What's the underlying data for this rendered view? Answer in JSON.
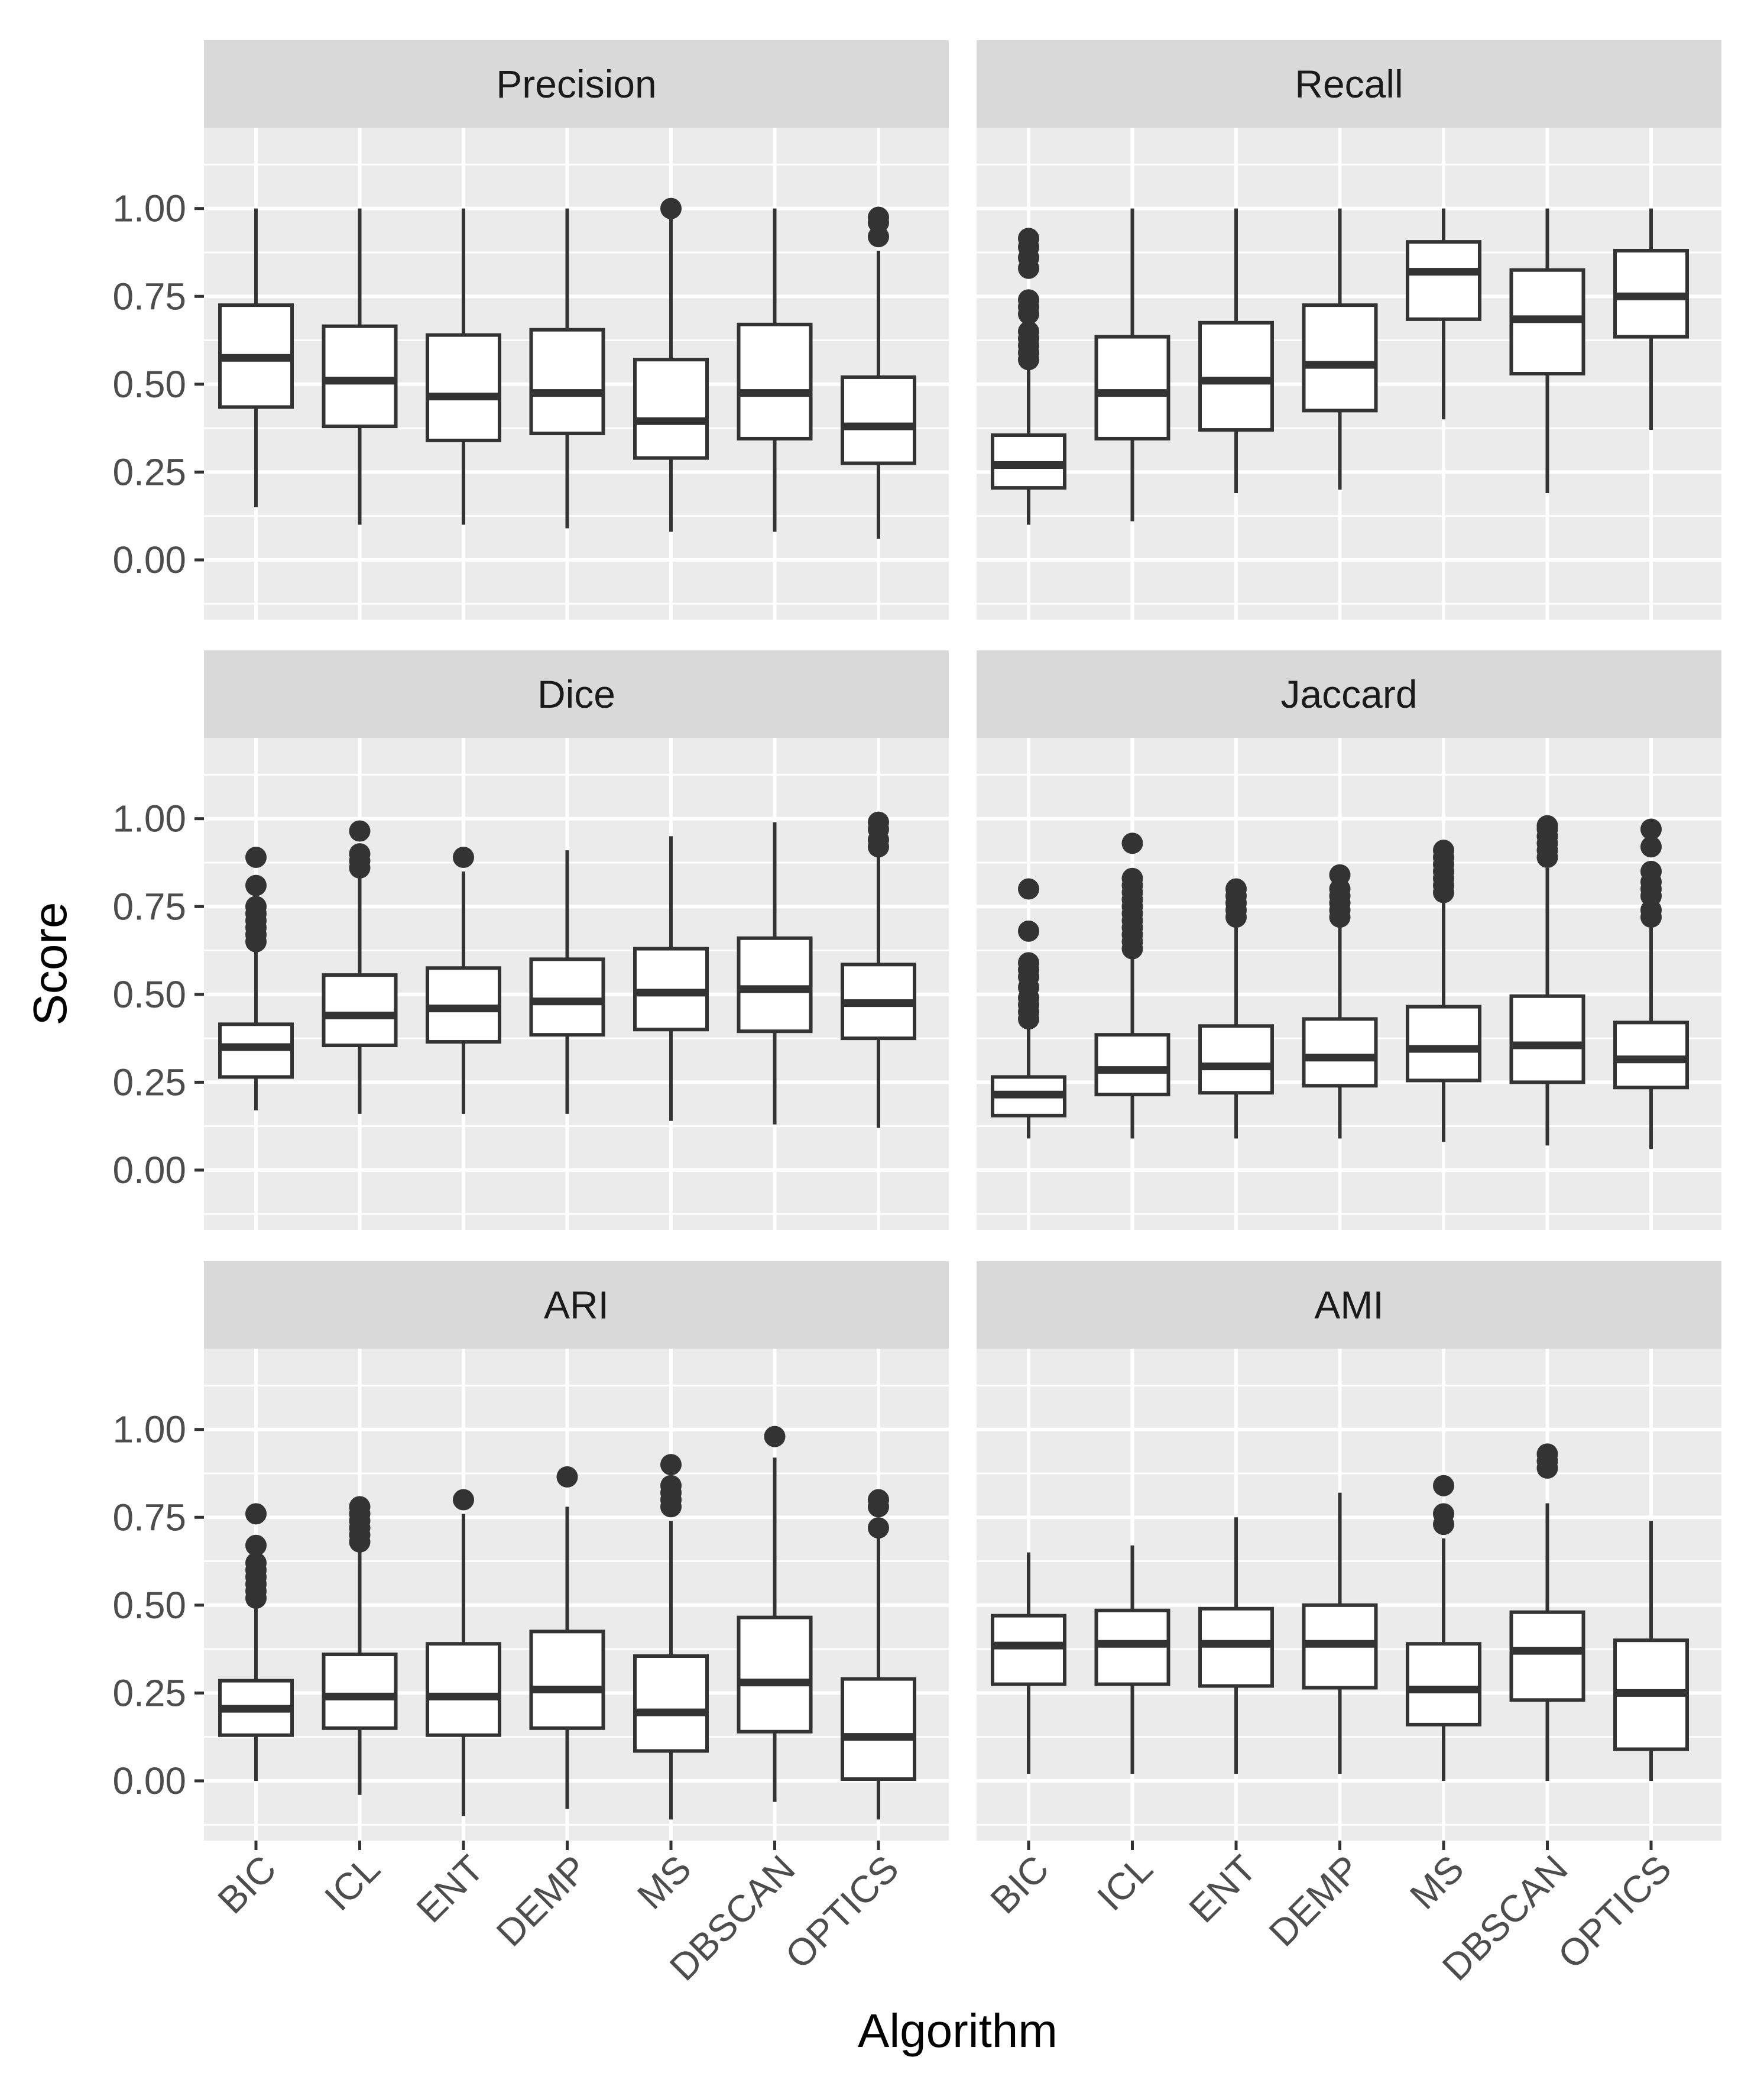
{
  "chart_data": {
    "type": "boxplot",
    "layout": "facet grid, 3 rows x 2 columns",
    "xlabel": "Algorithm",
    "ylabel": "Score",
    "categories": [
      "BIC",
      "ICL",
      "ENT",
      "DEMP",
      "MS",
      "DBSCAN",
      "OPTICS"
    ],
    "ylim": [
      -0.17,
      1.23
    ],
    "yticks": [
      0.0,
      0.25,
      0.5,
      0.75,
      1.0
    ],
    "ytick_labels": [
      "0.00",
      "0.25",
      "0.50",
      "0.75",
      "1.00"
    ],
    "colors": {
      "panel_bg": "#ebebeb",
      "strip_bg": "#d9d9d9",
      "grid": "#ffffff",
      "box_fill": "#ffffff",
      "box_line": "#333333"
    },
    "panels": [
      {
        "title": "Precision",
        "boxes": [
          {
            "category": "BIC",
            "low": 0.15,
            "q1": 0.435,
            "median": 0.575,
            "q3": 0.725,
            "high": 1.0,
            "outliers": []
          },
          {
            "category": "ICL",
            "low": 0.1,
            "q1": 0.38,
            "median": 0.51,
            "q3": 0.665,
            "high": 1.0,
            "outliers": []
          },
          {
            "category": "ENT",
            "low": 0.1,
            "q1": 0.34,
            "median": 0.465,
            "q3": 0.64,
            "high": 1.0,
            "outliers": []
          },
          {
            "category": "DEMP",
            "low": 0.09,
            "q1": 0.36,
            "median": 0.475,
            "q3": 0.655,
            "high": 1.0,
            "outliers": []
          },
          {
            "category": "MS",
            "low": 0.08,
            "q1": 0.29,
            "median": 0.395,
            "q3": 0.57,
            "high": 1.0,
            "outliers": [
              1.0
            ]
          },
          {
            "category": "DBSCAN",
            "low": 0.08,
            "q1": 0.345,
            "median": 0.475,
            "q3": 0.67,
            "high": 1.0,
            "outliers": []
          },
          {
            "category": "OPTICS",
            "low": 0.06,
            "q1": 0.275,
            "median": 0.38,
            "q3": 0.52,
            "high": 0.88,
            "outliers": [
              0.92,
              0.96,
              0.975
            ]
          }
        ]
      },
      {
        "title": "Recall",
        "boxes": [
          {
            "category": "BIC",
            "low": 0.1,
            "q1": 0.205,
            "median": 0.27,
            "q3": 0.355,
            "high": 0.55,
            "outliers": [
              0.57,
              0.59,
              0.61,
              0.63,
              0.65,
              0.7,
              0.72,
              0.74,
              0.83,
              0.86,
              0.89,
              0.915
            ]
          },
          {
            "category": "ICL",
            "low": 0.11,
            "q1": 0.345,
            "median": 0.475,
            "q3": 0.635,
            "high": 1.0,
            "outliers": []
          },
          {
            "category": "ENT",
            "low": 0.19,
            "q1": 0.37,
            "median": 0.51,
            "q3": 0.675,
            "high": 1.0,
            "outliers": []
          },
          {
            "category": "DEMP",
            "low": 0.2,
            "q1": 0.425,
            "median": 0.555,
            "q3": 0.725,
            "high": 1.0,
            "outliers": []
          },
          {
            "category": "MS",
            "low": 0.4,
            "q1": 0.685,
            "median": 0.82,
            "q3": 0.905,
            "high": 1.0,
            "outliers": []
          },
          {
            "category": "DBSCAN",
            "low": 0.19,
            "q1": 0.53,
            "median": 0.685,
            "q3": 0.825,
            "high": 1.0,
            "outliers": []
          },
          {
            "category": "OPTICS",
            "low": 0.37,
            "q1": 0.635,
            "median": 0.75,
            "q3": 0.88,
            "high": 1.0,
            "outliers": []
          }
        ]
      },
      {
        "title": "Dice",
        "boxes": [
          {
            "category": "BIC",
            "low": 0.17,
            "q1": 0.265,
            "median": 0.35,
            "q3": 0.415,
            "high": 0.62,
            "outliers": [
              0.65,
              0.67,
              0.69,
              0.71,
              0.73,
              0.75,
              0.81,
              0.89
            ]
          },
          {
            "category": "ICL",
            "low": 0.16,
            "q1": 0.355,
            "median": 0.44,
            "q3": 0.555,
            "high": 0.84,
            "outliers": [
              0.86,
              0.88,
              0.9,
              0.965
            ]
          },
          {
            "category": "ENT",
            "low": 0.16,
            "q1": 0.365,
            "median": 0.46,
            "q3": 0.575,
            "high": 0.85,
            "outliers": [
              0.89
            ]
          },
          {
            "category": "DEMP",
            "low": 0.16,
            "q1": 0.385,
            "median": 0.48,
            "q3": 0.6,
            "high": 0.91,
            "outliers": []
          },
          {
            "category": "MS",
            "low": 0.14,
            "q1": 0.4,
            "median": 0.505,
            "q3": 0.63,
            "high": 0.95,
            "outliers": []
          },
          {
            "category": "DBSCAN",
            "low": 0.13,
            "q1": 0.395,
            "median": 0.515,
            "q3": 0.66,
            "high": 0.99,
            "outliers": []
          },
          {
            "category": "OPTICS",
            "low": 0.12,
            "q1": 0.375,
            "median": 0.475,
            "q3": 0.585,
            "high": 0.89,
            "outliers": [
              0.92,
              0.94,
              0.97,
              0.99
            ]
          }
        ]
      },
      {
        "title": "Jaccard",
        "boxes": [
          {
            "category": "BIC",
            "low": 0.09,
            "q1": 0.155,
            "median": 0.215,
            "q3": 0.265,
            "high": 0.41,
            "outliers": [
              0.43,
              0.45,
              0.47,
              0.49,
              0.52,
              0.55,
              0.57,
              0.59,
              0.68,
              0.8
            ]
          },
          {
            "category": "ICL",
            "low": 0.09,
            "q1": 0.215,
            "median": 0.285,
            "q3": 0.385,
            "high": 0.61,
            "outliers": [
              0.63,
              0.65,
              0.67,
              0.69,
              0.71,
              0.73,
              0.75,
              0.77,
              0.79,
              0.81,
              0.83,
              0.93
            ]
          },
          {
            "category": "ENT",
            "low": 0.09,
            "q1": 0.22,
            "median": 0.295,
            "q3": 0.41,
            "high": 0.7,
            "outliers": [
              0.72,
              0.74,
              0.76,
              0.78,
              0.8
            ]
          },
          {
            "category": "DEMP",
            "low": 0.09,
            "q1": 0.24,
            "median": 0.32,
            "q3": 0.43,
            "high": 0.7,
            "outliers": [
              0.72,
              0.74,
              0.76,
              0.78,
              0.8,
              0.84
            ]
          },
          {
            "category": "MS",
            "low": 0.08,
            "q1": 0.255,
            "median": 0.345,
            "q3": 0.465,
            "high": 0.77,
            "outliers": [
              0.79,
              0.81,
              0.83,
              0.85,
              0.87,
              0.89,
              0.91
            ]
          },
          {
            "category": "DBSCAN",
            "low": 0.07,
            "q1": 0.25,
            "median": 0.355,
            "q3": 0.495,
            "high": 0.86,
            "outliers": [
              0.89,
              0.91,
              0.93,
              0.95,
              0.97,
              0.98
            ]
          },
          {
            "category": "OPTICS",
            "low": 0.06,
            "q1": 0.235,
            "median": 0.315,
            "q3": 0.42,
            "high": 0.7,
            "outliers": [
              0.72,
              0.74,
              0.78,
              0.8,
              0.82,
              0.85,
              0.92,
              0.97
            ]
          }
        ]
      },
      {
        "title": "ARI",
        "boxes": [
          {
            "category": "BIC",
            "low": 0.0,
            "q1": 0.13,
            "median": 0.205,
            "q3": 0.285,
            "high": 0.5,
            "outliers": [
              0.52,
              0.54,
              0.56,
              0.58,
              0.6,
              0.62,
              0.67,
              0.76
            ]
          },
          {
            "category": "ICL",
            "low": -0.04,
            "q1": 0.15,
            "median": 0.24,
            "q3": 0.36,
            "high": 0.66,
            "outliers": [
              0.68,
              0.7,
              0.72,
              0.74,
              0.76,
              0.78
            ]
          },
          {
            "category": "ENT",
            "low": -0.1,
            "q1": 0.13,
            "median": 0.24,
            "q3": 0.39,
            "high": 0.76,
            "outliers": [
              0.8
            ]
          },
          {
            "category": "DEMP",
            "low": -0.08,
            "q1": 0.15,
            "median": 0.26,
            "q3": 0.425,
            "high": 0.78,
            "outliers": [
              0.865
            ]
          },
          {
            "category": "MS",
            "low": -0.11,
            "q1": 0.085,
            "median": 0.195,
            "q3": 0.355,
            "high": 0.74,
            "outliers": [
              0.78,
              0.8,
              0.82,
              0.84,
              0.9
            ]
          },
          {
            "category": "DBSCAN",
            "low": -0.06,
            "q1": 0.14,
            "median": 0.28,
            "q3": 0.465,
            "high": 0.92,
            "outliers": [
              0.98
            ]
          },
          {
            "category": "OPTICS",
            "low": -0.11,
            "q1": 0.005,
            "median": 0.125,
            "q3": 0.29,
            "high": 0.7,
            "outliers": [
              0.72,
              0.78,
              0.8
            ]
          }
        ]
      },
      {
        "title": "AMI",
        "boxes": [
          {
            "category": "BIC",
            "low": 0.02,
            "q1": 0.275,
            "median": 0.385,
            "q3": 0.47,
            "high": 0.65,
            "outliers": []
          },
          {
            "category": "ICL",
            "low": 0.02,
            "q1": 0.275,
            "median": 0.39,
            "q3": 0.485,
            "high": 0.67,
            "outliers": []
          },
          {
            "category": "ENT",
            "low": 0.02,
            "q1": 0.27,
            "median": 0.39,
            "q3": 0.49,
            "high": 0.75,
            "outliers": []
          },
          {
            "category": "DEMP",
            "low": 0.02,
            "q1": 0.265,
            "median": 0.39,
            "q3": 0.5,
            "high": 0.82,
            "outliers": []
          },
          {
            "category": "MS",
            "low": 0.0,
            "q1": 0.16,
            "median": 0.26,
            "q3": 0.39,
            "high": 0.69,
            "outliers": [
              0.73,
              0.76,
              0.84
            ]
          },
          {
            "category": "DBSCAN",
            "low": 0.0,
            "q1": 0.23,
            "median": 0.37,
            "q3": 0.48,
            "high": 0.79,
            "outliers": [
              0.89,
              0.91,
              0.93
            ]
          },
          {
            "category": "OPTICS",
            "low": 0.0,
            "q1": 0.09,
            "median": 0.25,
            "q3": 0.4,
            "high": 0.74,
            "outliers": []
          }
        ]
      }
    ]
  }
}
